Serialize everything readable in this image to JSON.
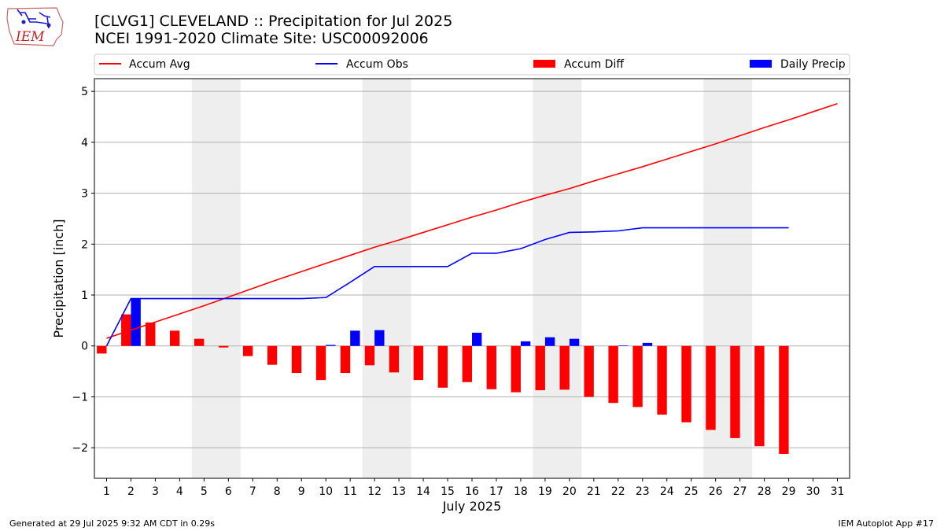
{
  "header": {
    "title_line1": "[CLVG1] CLEVELAND :: Precipitation for Jul 2025",
    "title_line2": "NCEI 1991-2020 Climate Site: USC00092006",
    "logo_text": "IEM"
  },
  "footer": {
    "generated": "Generated at 29 Jul 2025 9:32 AM CDT in 0.29s",
    "app": "IEM Autoplot App #17"
  },
  "colors": {
    "avg": "#ff0000",
    "obs": "#0000ff",
    "diff": "#ff0000",
    "daily": "#0000ff",
    "weekend_band": "#eeeeee",
    "grid": "#b0b0b0"
  },
  "chart_data": {
    "type": "bar",
    "xlabel": "July 2025",
    "ylabel": "Precipitation [inch]",
    "ylim": [
      -2.6,
      5.25
    ],
    "xlim": [
      0.5,
      31.5
    ],
    "yticks": [
      -2,
      -1,
      0,
      1,
      2,
      3,
      4,
      5
    ],
    "ytick_labels": [
      "−2",
      "−1",
      "0",
      "1",
      "2",
      "3",
      "4",
      "5"
    ],
    "days": [
      1,
      2,
      3,
      4,
      5,
      6,
      7,
      8,
      9,
      10,
      11,
      12,
      13,
      14,
      15,
      16,
      17,
      18,
      19,
      20,
      21,
      22,
      23,
      24,
      25,
      26,
      27,
      28,
      29,
      30,
      31
    ],
    "weekend_bands": [
      [
        4.5,
        6.5
      ],
      [
        11.5,
        13.5
      ],
      [
        18.5,
        20.5
      ],
      [
        25.5,
        27.5
      ]
    ],
    "grid": "horizontal",
    "legend_position": "top",
    "legend": [
      "Accum Avg",
      "Accum Obs",
      "Accum Diff",
      "Daily Precip"
    ],
    "series": [
      {
        "name": "Accum Avg",
        "kind": "line",
        "x": [
          1,
          2,
          3,
          4,
          5,
          6,
          7,
          8,
          9,
          10,
          11,
          12,
          13,
          14,
          15,
          16,
          17,
          18,
          19,
          20,
          21,
          22,
          23,
          24,
          25,
          26,
          27,
          28,
          29,
          30,
          31
        ],
        "values": [
          0.15,
          0.31,
          0.47,
          0.63,
          0.79,
          0.96,
          1.13,
          1.3,
          1.46,
          1.62,
          1.78,
          1.94,
          2.08,
          2.23,
          2.38,
          2.53,
          2.67,
          2.82,
          2.96,
          3.09,
          3.24,
          3.38,
          3.52,
          3.67,
          3.82,
          3.97,
          4.13,
          4.29,
          4.44,
          4.6,
          4.76
        ]
      },
      {
        "name": "Accum Obs",
        "kind": "line",
        "x": [
          1,
          2,
          3,
          4,
          5,
          6,
          7,
          8,
          9,
          10,
          11,
          12,
          13,
          14,
          15,
          16,
          17,
          18,
          19,
          20,
          21,
          22,
          23,
          24,
          25,
          26,
          27,
          28,
          29
        ],
        "values": [
          0.0,
          0.93,
          0.93,
          0.93,
          0.93,
          0.93,
          0.93,
          0.93,
          0.93,
          0.95,
          1.25,
          1.56,
          1.56,
          1.56,
          1.56,
          1.82,
          1.82,
          1.91,
          2.09,
          2.23,
          2.24,
          2.26,
          2.32,
          2.32,
          2.32,
          2.32,
          2.32,
          2.32,
          2.32
        ]
      },
      {
        "name": "Accum Diff",
        "kind": "bar",
        "x": [
          1,
          2,
          3,
          4,
          5,
          6,
          7,
          8,
          9,
          10,
          11,
          12,
          13,
          14,
          15,
          16,
          17,
          18,
          19,
          20,
          21,
          22,
          23,
          24,
          25,
          26,
          27,
          28,
          29
        ],
        "values": [
          -0.15,
          0.62,
          0.46,
          0.3,
          0.14,
          -0.03,
          -0.2,
          -0.37,
          -0.53,
          -0.67,
          -0.53,
          -0.38,
          -0.52,
          -0.67,
          -0.82,
          -0.71,
          -0.85,
          -0.91,
          -0.87,
          -0.86,
          -1.0,
          -1.12,
          -1.2,
          -1.35,
          -1.5,
          -1.65,
          -1.81,
          -1.97,
          -2.12
        ]
      },
      {
        "name": "Daily Precip",
        "kind": "bar",
        "x": [
          2,
          10,
          11,
          12,
          16,
          18,
          19,
          20,
          22,
          23
        ],
        "values": [
          0.93,
          0.02,
          0.3,
          0.31,
          0.26,
          0.09,
          0.17,
          0.14,
          0.01,
          0.06
        ]
      }
    ]
  }
}
